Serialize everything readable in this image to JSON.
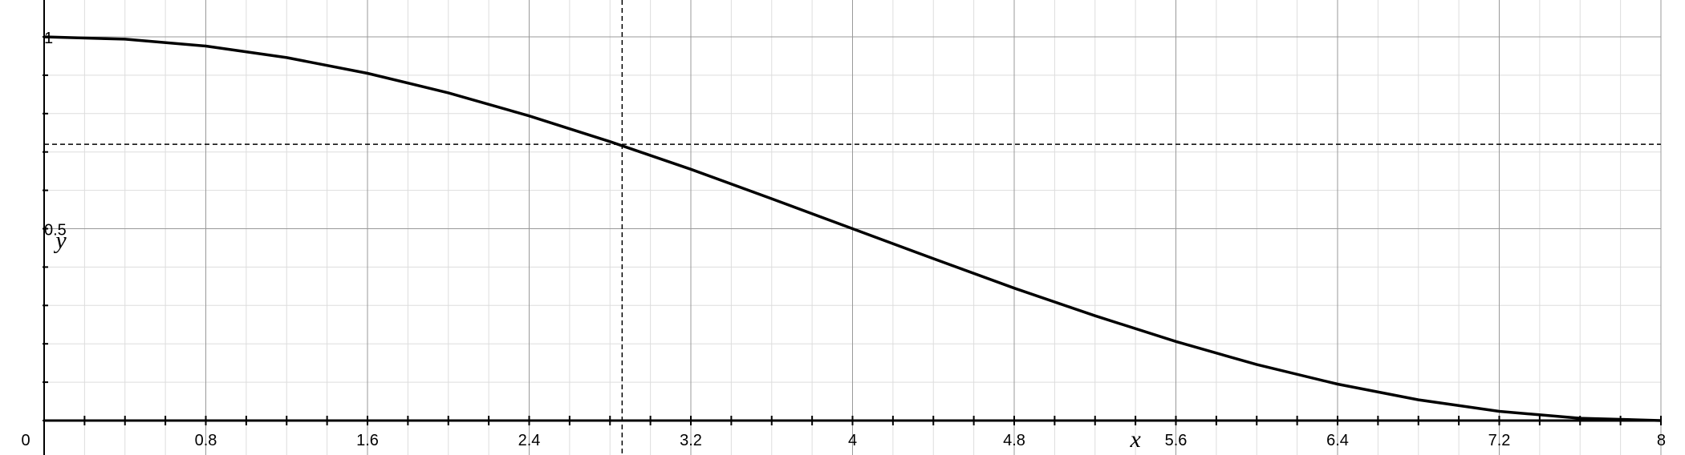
{
  "chart_data": {
    "type": "line",
    "title": "",
    "xlabel": "x",
    "ylabel": "y",
    "xlim": [
      0,
      8
    ],
    "ylim": [
      -0.1,
      1.1
    ],
    "grid": true,
    "x_ticks": [
      {
        "value": 0,
        "label": "0"
      },
      {
        "value": 0.8,
        "label": "0.8"
      },
      {
        "value": 1.6,
        "label": "1.6"
      },
      {
        "value": 2.4,
        "label": "2.4"
      },
      {
        "value": 3.2,
        "label": "3.2"
      },
      {
        "value": 4,
        "label": "4"
      },
      {
        "value": 4.8,
        "label": "4.8"
      },
      {
        "value": 5.6,
        "label": "5.6"
      },
      {
        "value": 6.4,
        "label": "6.4"
      },
      {
        "value": 7.2,
        "label": "7.2"
      },
      {
        "value": 8,
        "label": "8"
      }
    ],
    "y_ticks": [
      {
        "value": 0.5,
        "label": "0.5"
      },
      {
        "value": 1,
        "label": "1"
      }
    ],
    "series": [
      {
        "x": [
          0,
          0.4,
          0.8,
          1.2,
          1.6,
          2.0,
          2.4,
          2.8,
          3.2,
          3.6,
          4.0,
          4.4,
          4.8,
          5.2,
          5.6,
          6.0,
          6.4,
          6.8,
          7.2,
          7.6,
          8.0
        ],
        "y": [
          1.0,
          0.994,
          0.976,
          0.946,
          0.905,
          0.854,
          0.794,
          0.727,
          0.655,
          0.578,
          0.5,
          0.422,
          0.345,
          0.273,
          0.206,
          0.146,
          0.095,
          0.054,
          0.024,
          0.006,
          0.0
        ]
      }
    ],
    "guide_lines": {
      "x": 2.86,
      "y": 0.72
    }
  }
}
